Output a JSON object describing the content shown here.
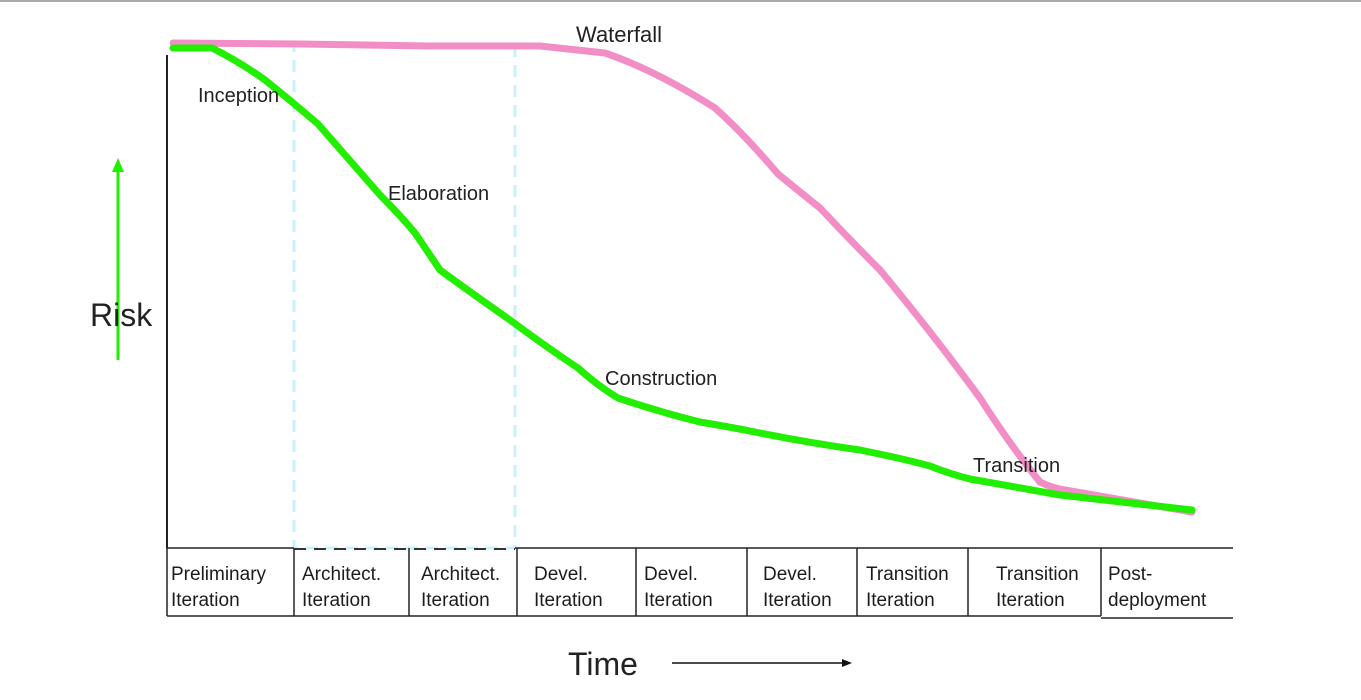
{
  "labels": {
    "y_axis": "Risk",
    "x_axis": "Time",
    "waterfall": "Waterfall",
    "inception": "Inception",
    "elaboration": "Elaboration",
    "construction": "Construction",
    "transition": "Transition"
  },
  "iterations": [
    "Preliminary\nIteration",
    "Architect.\nIteration",
    "Architect.\nIteration",
    "Devel.\nIteration",
    "Devel.\nIteration",
    "Devel.\nIteration",
    "Transition\nIteration",
    "Transition\nIteration",
    "Post-\ndeployment"
  ],
  "colors": {
    "iterative_curve": "#22ee00",
    "waterfall_curve": "#f28ec6",
    "elaboration_box": "#c9f1fb",
    "risk_arrow": "#22ee00",
    "axis": "#222222"
  }
}
